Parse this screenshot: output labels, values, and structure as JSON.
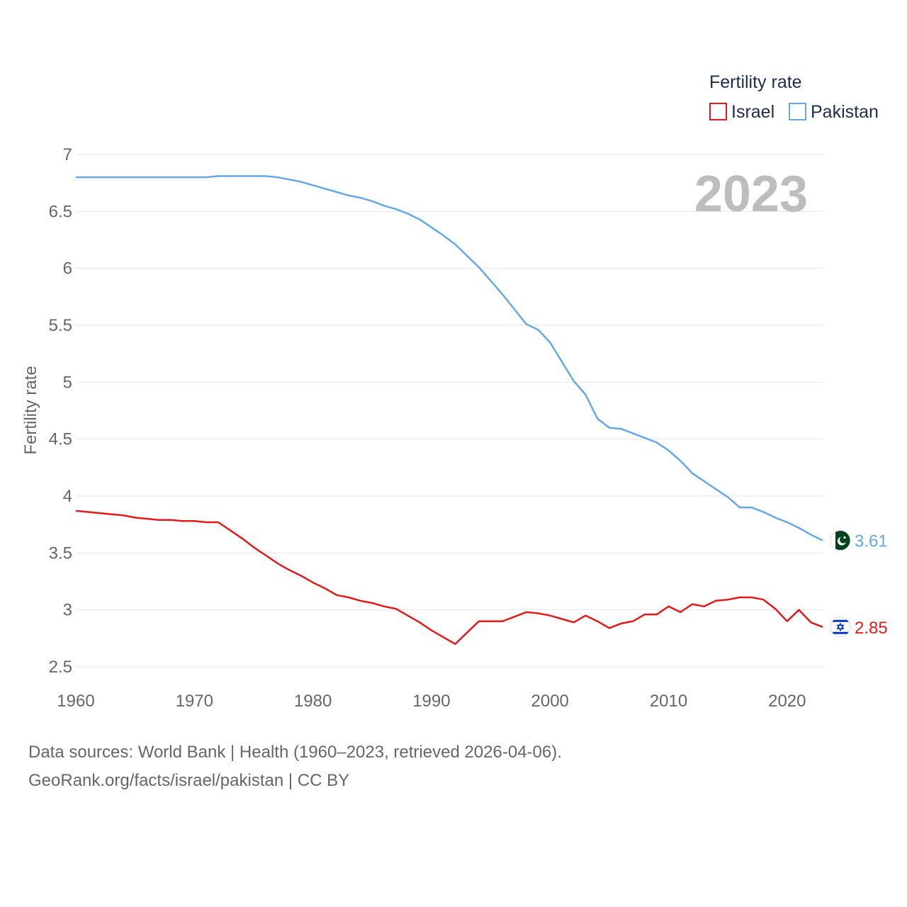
{
  "chart_data": {
    "type": "line",
    "year_label": "2023",
    "ylabel": "Fertility rate",
    "legend_title": "Fertility rate",
    "ylim": [
      2.5,
      7
    ],
    "xlim": [
      1960,
      2023
    ],
    "yticks": [
      "2.5",
      "3",
      "3.5",
      "4",
      "4.5",
      "5",
      "5.5",
      "6",
      "6.5",
      "7"
    ],
    "xticks": [
      "1960",
      "1970",
      "1980",
      "1990",
      "2000",
      "2010",
      "2020"
    ],
    "x": [
      1960,
      1961,
      1962,
      1963,
      1964,
      1965,
      1966,
      1967,
      1968,
      1969,
      1970,
      1971,
      1972,
      1973,
      1974,
      1975,
      1976,
      1977,
      1978,
      1979,
      1980,
      1981,
      1982,
      1983,
      1984,
      1985,
      1986,
      1987,
      1988,
      1989,
      1990,
      1991,
      1992,
      1993,
      1994,
      1995,
      1996,
      1997,
      1998,
      1999,
      2000,
      2001,
      2002,
      2003,
      2004,
      2005,
      2006,
      2007,
      2008,
      2009,
      2010,
      2011,
      2012,
      2013,
      2014,
      2015,
      2016,
      2017,
      2018,
      2019,
      2020,
      2021,
      2022,
      2023
    ],
    "series": [
      {
        "name": "Israel",
        "color": "#e31a1c",
        "end_label": "2.85",
        "flag_icon": "israel-flag-icon",
        "values": [
          3.87,
          3.86,
          3.85,
          3.84,
          3.83,
          3.81,
          3.8,
          3.79,
          3.79,
          3.78,
          3.78,
          3.77,
          3.77,
          3.7,
          3.63,
          3.55,
          3.48,
          3.41,
          3.35,
          3.3,
          3.24,
          3.19,
          3.13,
          3.11,
          3.08,
          3.06,
          3.03,
          3.01,
          2.95,
          2.89,
          2.82,
          2.76,
          2.7,
          2.8,
          2.9,
          2.9,
          2.9,
          2.94,
          2.98,
          2.97,
          2.95,
          2.92,
          2.89,
          2.95,
          2.9,
          2.84,
          2.88,
          2.9,
          2.96,
          2.96,
          3.03,
          2.98,
          3.05,
          3.03,
          3.08,
          3.09,
          3.11,
          3.11,
          3.09,
          3.01,
          2.9,
          3.0,
          2.89,
          2.85
        ]
      },
      {
        "name": "Pakistan",
        "color": "#64a8e8",
        "end_label": "3.61",
        "flag_icon": "pakistan-flag-icon",
        "values": [
          6.8,
          6.8,
          6.8,
          6.8,
          6.8,
          6.8,
          6.8,
          6.8,
          6.8,
          6.8,
          6.8,
          6.8,
          6.81,
          6.81,
          6.81,
          6.81,
          6.81,
          6.8,
          6.78,
          6.76,
          6.73,
          6.7,
          6.67,
          6.64,
          6.62,
          6.59,
          6.55,
          6.52,
          6.48,
          6.43,
          6.36,
          6.29,
          6.21,
          6.11,
          6.01,
          5.89,
          5.77,
          5.64,
          5.51,
          5.46,
          5.35,
          5.18,
          5.01,
          4.89,
          4.68,
          4.6,
          4.59,
          4.55,
          4.51,
          4.47,
          4.4,
          4.31,
          4.2,
          4.13,
          4.06,
          3.99,
          3.9,
          3.9,
          3.86,
          3.81,
          3.77,
          3.72,
          3.66,
          3.61
        ]
      }
    ]
  },
  "source": {
    "line1": "Data sources: World Bank | Health (1960–2023, retrieved 2026-04-06).",
    "line2": "GeoRank.org/facts/israel/pakistan | CC BY"
  }
}
